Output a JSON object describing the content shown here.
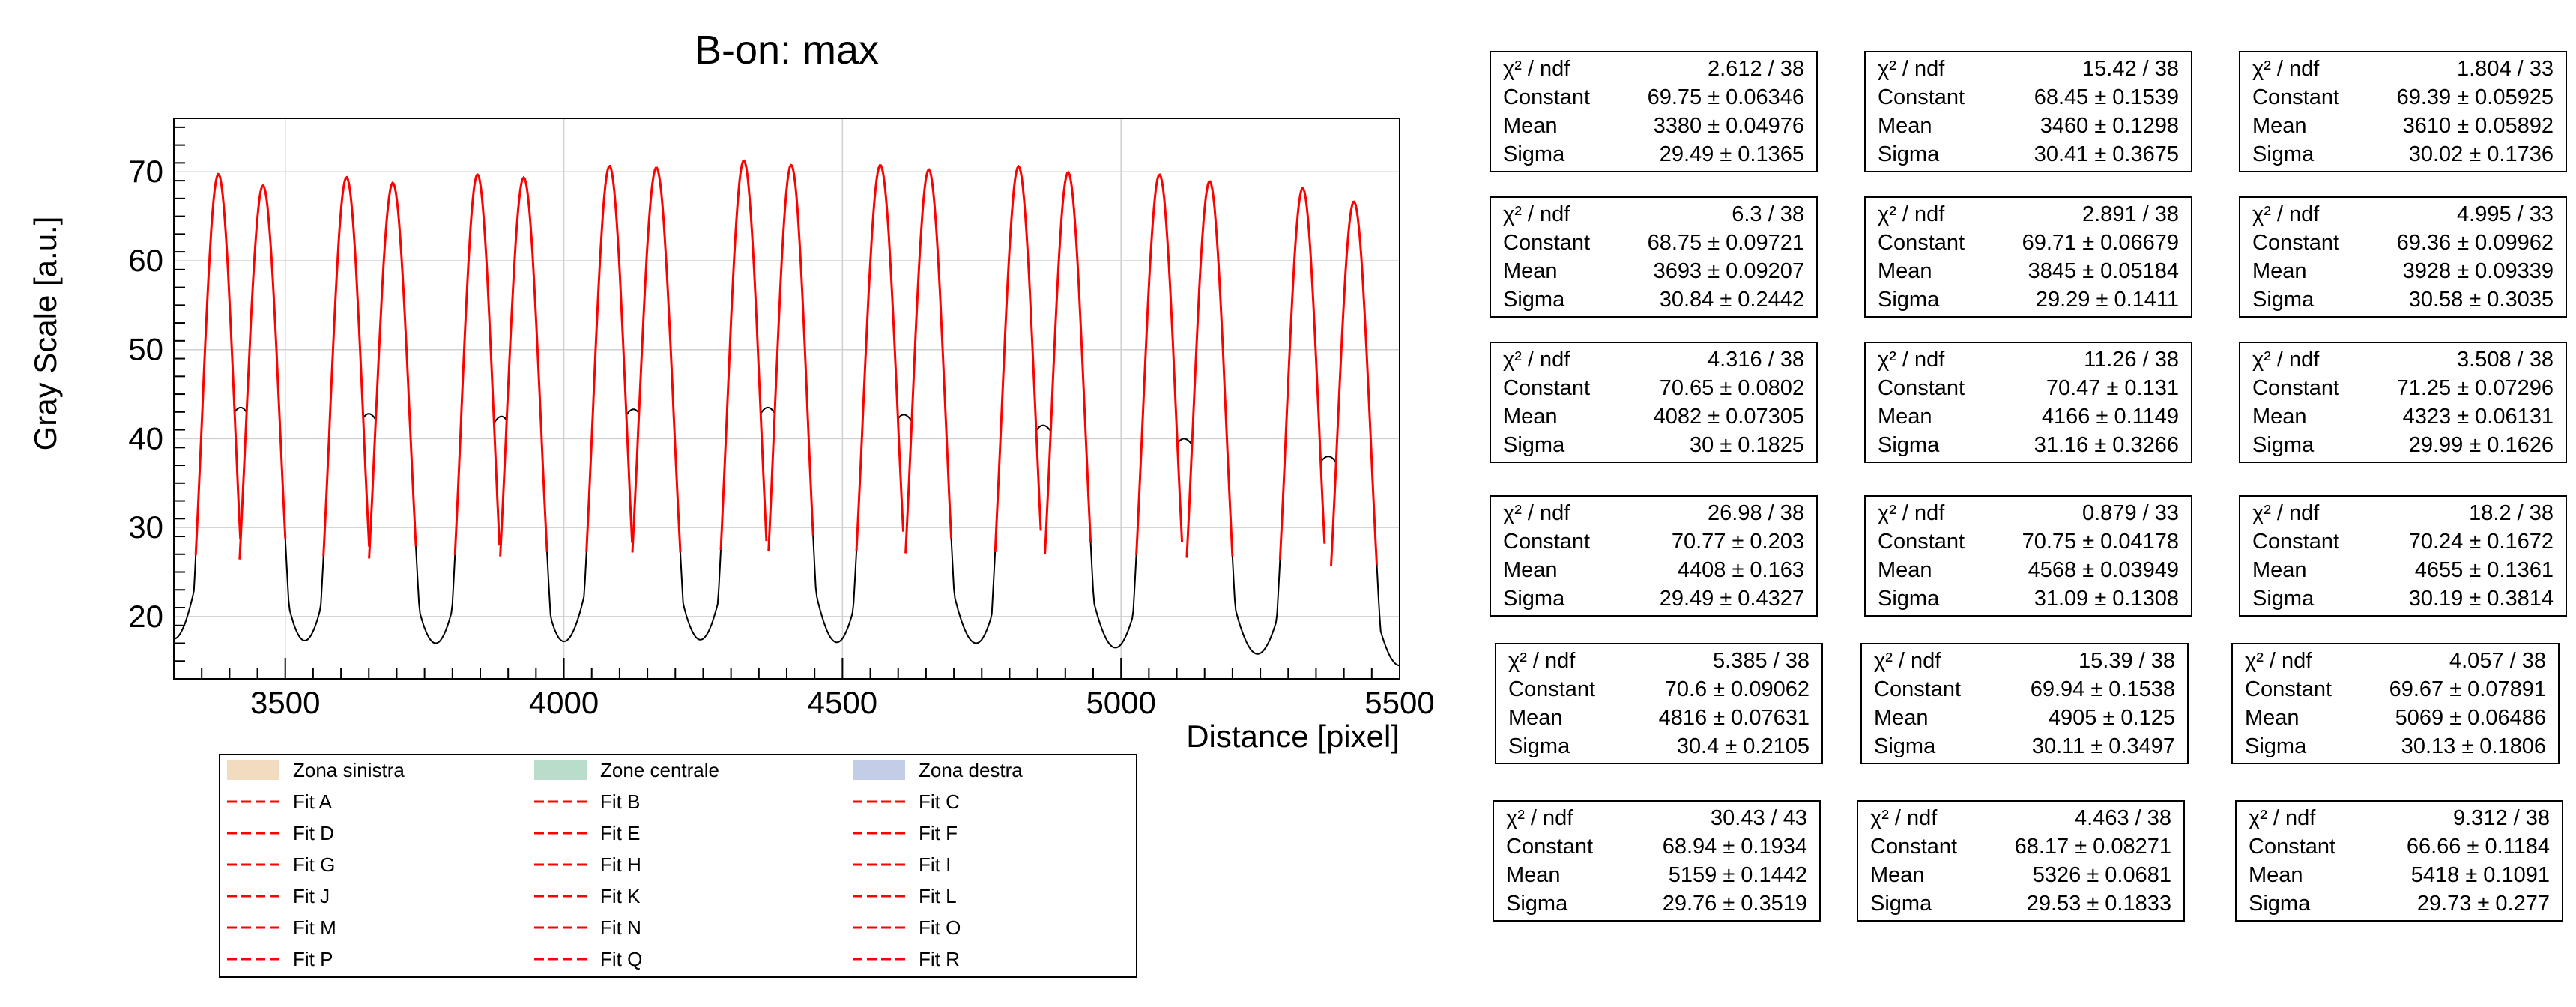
{
  "colors": {
    "data_line": "#000000",
    "fit_line": "#ff0000",
    "zona_sinistra": "#f2dcbf",
    "zone_centrale": "#b9dccb",
    "zona_destra": "#c3cde8"
  },
  "chart_data": {
    "type": "line",
    "title": "B-on: max",
    "xlabel": "Distance [pixel]",
    "ylabel": "Gray Scale [a.u.]",
    "xlim": [
      3300,
      5500
    ],
    "ylim": [
      13,
      76
    ],
    "xticks": [
      3500,
      4000,
      4500,
      5000,
      5500
    ],
    "yticks": [
      20,
      30,
      40,
      50,
      60,
      70
    ],
    "grid": true,
    "baseline_minima": [
      {
        "x": 3300,
        "y": 17.5
      },
      {
        "x": 3535,
        "y": 17.3
      },
      {
        "x": 3770,
        "y": 17.0
      },
      {
        "x": 4000,
        "y": 17.2
      },
      {
        "x": 4245,
        "y": 17.4
      },
      {
        "x": 4490,
        "y": 17.1
      },
      {
        "x": 4740,
        "y": 17.0
      },
      {
        "x": 4990,
        "y": 16.5
      },
      {
        "x": 5245,
        "y": 15.8
      },
      {
        "x": 5500,
        "y": 14.5
      }
    ],
    "pair_minima": [
      {
        "x": 3420,
        "y": 43.5
      },
      {
        "x": 3650,
        "y": 42.8
      },
      {
        "x": 3888,
        "y": 42.5
      },
      {
        "x": 4125,
        "y": 43.3
      },
      {
        "x": 4366,
        "y": 43.5
      },
      {
        "x": 4610,
        "y": 42.7
      },
      {
        "x": 4860,
        "y": 41.5
      },
      {
        "x": 5113,
        "y": 40.0
      },
      {
        "x": 5372,
        "y": 38.0
      }
    ],
    "legend": {
      "placement": "bottom",
      "entries": [
        {
          "label": "Zona sinistra",
          "kind": "fill",
          "color": "#f2dcbf"
        },
        {
          "label": "Zone centrale",
          "kind": "fill",
          "color": "#b9dccb"
        },
        {
          "label": "Zona destra",
          "kind": "fill",
          "color": "#c3cde8"
        },
        {
          "label": "Fit A",
          "kind": "dash"
        },
        {
          "label": "Fit B",
          "kind": "dash"
        },
        {
          "label": "Fit C",
          "kind": "dash"
        },
        {
          "label": "Fit D",
          "kind": "dash"
        },
        {
          "label": "Fit E",
          "kind": "dash"
        },
        {
          "label": "Fit F",
          "kind": "dash"
        },
        {
          "label": "Fit G",
          "kind": "dash"
        },
        {
          "label": "Fit H",
          "kind": "dash"
        },
        {
          "label": "Fit I",
          "kind": "dash"
        },
        {
          "label": "Fit J",
          "kind": "dash"
        },
        {
          "label": "Fit K",
          "kind": "dash"
        },
        {
          "label": "Fit L",
          "kind": "dash"
        },
        {
          "label": "Fit M",
          "kind": "dash"
        },
        {
          "label": "Fit N",
          "kind": "dash"
        },
        {
          "label": "Fit O",
          "kind": "dash"
        },
        {
          "label": "Fit P",
          "kind": "dash"
        },
        {
          "label": "Fit Q",
          "kind": "dash"
        },
        {
          "label": "Fit R",
          "kind": "dash"
        }
      ]
    },
    "fits": [
      {
        "chi2_ndf": "2.612 / 38",
        "constant": "69.75 ± 0.06346",
        "mean": "3380 ± 0.04976",
        "sigma": "29.49 ± 0.1365",
        "c": 69.75,
        "mu": 3380,
        "s": 29.49
      },
      {
        "chi2_ndf": "15.42 / 38",
        "constant": "68.45 ± 0.1539",
        "mean": "3460 ± 0.1298",
        "sigma": "30.41 ± 0.3675",
        "c": 68.45,
        "mu": 3460,
        "s": 30.41
      },
      {
        "chi2_ndf": "1.804 / 33",
        "constant": "69.39 ± 0.05925",
        "mean": "3610 ± 0.05892",
        "sigma": "30.02 ± 0.1736",
        "c": 69.39,
        "mu": 3610,
        "s": 30.02
      },
      {
        "chi2_ndf": "6.3 / 38",
        "constant": "68.75 ± 0.09721",
        "mean": "3693 ± 0.09207",
        "sigma": "30.84 ± 0.2442",
        "c": 68.75,
        "mu": 3693,
        "s": 30.84
      },
      {
        "chi2_ndf": "2.891 / 38",
        "constant": "69.71 ± 0.06679",
        "mean": "3845 ± 0.05184",
        "sigma": "29.29 ± 0.1411",
        "c": 69.71,
        "mu": 3845,
        "s": 29.29
      },
      {
        "chi2_ndf": "4.995 / 33",
        "constant": "69.36 ± 0.09962",
        "mean": "3928 ± 0.09339",
        "sigma": "30.58 ± 0.3035",
        "c": 69.36,
        "mu": 3928,
        "s": 30.58
      },
      {
        "chi2_ndf": "4.316 / 38",
        "constant": "70.65 ± 0.0802",
        "mean": "4082 ± 0.07305",
        "sigma": "30 ± 0.1825",
        "c": 70.65,
        "mu": 4082,
        "s": 30
      },
      {
        "chi2_ndf": "11.26 / 38",
        "constant": "70.47 ± 0.131",
        "mean": "4166 ± 0.1149",
        "sigma": "31.16 ± 0.3266",
        "c": 70.47,
        "mu": 4166,
        "s": 31.16
      },
      {
        "chi2_ndf": "3.508 / 38",
        "constant": "71.25 ± 0.07296",
        "mean": "4323 ± 0.06131",
        "sigma": "29.99 ± 0.1626",
        "c": 71.25,
        "mu": 4323,
        "s": 29.99
      },
      {
        "chi2_ndf": "26.98 / 38",
        "constant": "70.77 ± 0.203",
        "mean": "4408 ± 0.163",
        "sigma": "29.49 ± 0.4327",
        "c": 70.77,
        "mu": 4408,
        "s": 29.49
      },
      {
        "chi2_ndf": "0.879 / 33",
        "constant": "70.75 ± 0.04178",
        "mean": "4568 ± 0.03949",
        "sigma": "31.09 ± 0.1308",
        "c": 70.75,
        "mu": 4568,
        "s": 31.09
      },
      {
        "chi2_ndf": "18.2 / 38",
        "constant": "70.24 ± 0.1672",
        "mean": "4655 ± 0.1361",
        "sigma": "30.19 ± 0.3814",
        "c": 70.24,
        "mu": 4655,
        "s": 30.19
      },
      {
        "chi2_ndf": "5.385 / 38",
        "constant": "70.6 ± 0.09062",
        "mean": "4816 ± 0.07631",
        "sigma": "30.4 ± 0.2105",
        "c": 70.6,
        "mu": 4816,
        "s": 30.4
      },
      {
        "chi2_ndf": "15.39 / 38",
        "constant": "69.94 ± 0.1538",
        "mean": "4905 ± 0.125",
        "sigma": "30.11 ± 0.3497",
        "c": 69.94,
        "mu": 4905,
        "s": 30.11
      },
      {
        "chi2_ndf": "4.057 / 38",
        "constant": "69.67 ± 0.07891",
        "mean": "5069 ± 0.06486",
        "sigma": "30.13 ± 0.1806",
        "c": 69.67,
        "mu": 5069,
        "s": 30.13
      },
      {
        "chi2_ndf": "30.43 / 43",
        "constant": "68.94 ± 0.1934",
        "mean": "5159 ± 0.1442",
        "sigma": "29.76 ± 0.3519",
        "c": 68.94,
        "mu": 5159,
        "s": 29.76
      },
      {
        "chi2_ndf": "4.463 / 38",
        "constant": "68.17 ± 0.08271",
        "mean": "5326 ± 0.0681",
        "sigma": "29.53 ± 0.1833",
        "c": 68.17,
        "mu": 5326,
        "s": 29.53
      },
      {
        "chi2_ndf": "9.312 / 38",
        "constant": "66.66 ± 0.1184",
        "mean": "5418 ± 0.1091",
        "sigma": "29.73 ± 0.277",
        "c": 66.66,
        "mu": 5418,
        "s": 29.73
      }
    ]
  },
  "statbox_labels": {
    "chi2_ndf": "χ² / ndf",
    "constant": "Constant",
    "mean": "Mean",
    "sigma": "Sigma"
  }
}
